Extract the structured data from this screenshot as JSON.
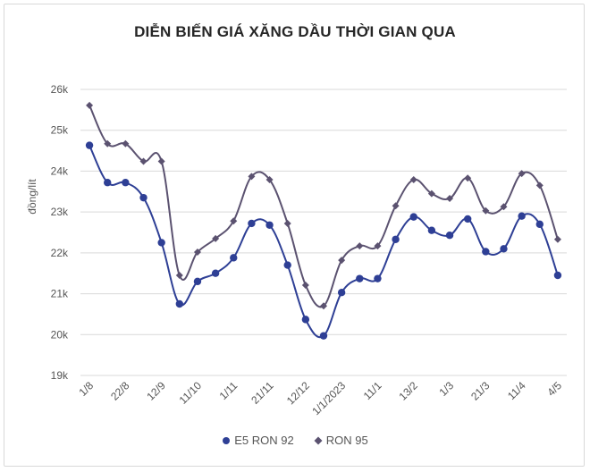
{
  "chart_data": {
    "type": "line",
    "title": "DIỄN BIẾN GIÁ XĂNG DẦU THỜI GIAN QUA",
    "ylabel": "đồng/lít",
    "xlabel": "",
    "ylim": [
      19,
      26
    ],
    "yticks": [
      19,
      20,
      21,
      22,
      23,
      24,
      25,
      26
    ],
    "ytick_labels": [
      "19k",
      "20k",
      "21k",
      "22k",
      "23k",
      "24k",
      "25k",
      "26k"
    ],
    "xtick_labels": [
      "1/8",
      "22/8",
      "12/9",
      "11/10",
      "1/11",
      "21/11",
      "12/12",
      "1/1/2023",
      "11/1",
      "13/2",
      "1/3",
      "21/3",
      "11/4",
      "4/5"
    ],
    "grid": true,
    "legend_position": "bottom",
    "series": [
      {
        "name": "E5 RON 92",
        "color": "#2e3f95",
        "marker": "circle",
        "values": [
          24.63,
          23.72,
          23.72,
          23.35,
          22.25,
          20.75,
          21.3,
          21.5,
          21.88,
          22.72,
          22.68,
          21.7,
          20.37,
          19.97,
          21.03,
          21.37,
          21.37,
          22.33,
          22.88,
          22.55,
          22.43,
          22.83,
          22.03,
          22.1,
          22.9,
          22.7,
          21.45
        ]
      },
      {
        "name": "RON 95",
        "color": "#5b5270",
        "marker": "diamond",
        "values": [
          25.61,
          24.67,
          24.67,
          24.24,
          24.24,
          21.45,
          22.02,
          22.35,
          22.78,
          23.87,
          23.79,
          22.72,
          21.21,
          20.7,
          21.82,
          22.17,
          22.17,
          23.15,
          23.79,
          23.45,
          23.33,
          23.83,
          23.03,
          23.13,
          23.94,
          23.65,
          22.33
        ]
      }
    ]
  }
}
